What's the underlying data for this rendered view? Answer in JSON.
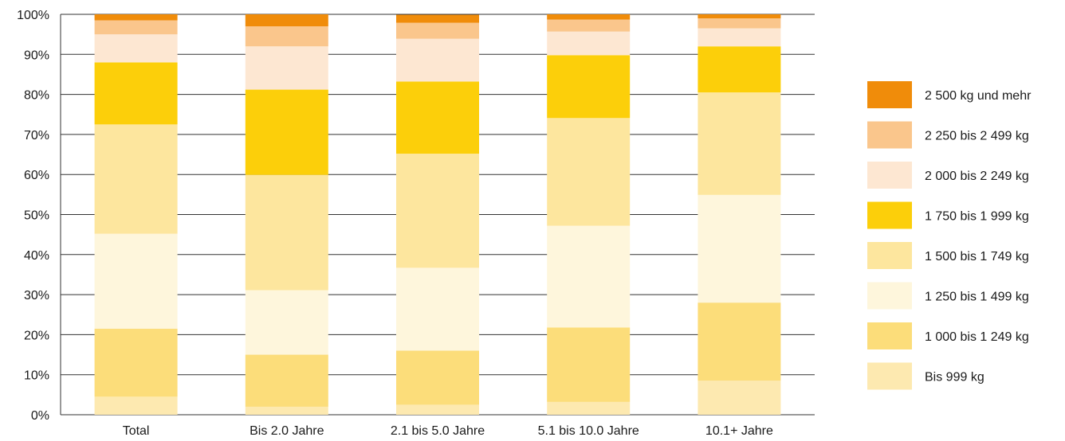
{
  "chart_data": {
    "type": "bar",
    "stacked": true,
    "categories": [
      "Total",
      "Bis 2.0 Jahre",
      "2.1 bis 5.0 Jahre",
      "5.1 bis 10.0 Jahre",
      "10.1+ Jahre"
    ],
    "yticks": [
      "0%",
      "10%",
      "20%",
      "30%",
      "40%",
      "50%",
      "60%",
      "70%",
      "80%",
      "90%",
      "100%"
    ],
    "ylim": [
      0,
      100
    ],
    "grid": true,
    "legend_position": "right",
    "series": [
      {
        "name": "Bis 999 kg",
        "color": "#FDE9B0",
        "values": [
          4.5,
          2.0,
          2.5,
          3.2,
          8.5
        ]
      },
      {
        "name": "1 000 bis 1 249 kg",
        "color": "#FCDD7A",
        "values": [
          17.0,
          13.0,
          13.5,
          18.6,
          19.5
        ]
      },
      {
        "name": "1 250 bis 1 499 kg",
        "color": "#FEF6DC",
        "values": [
          23.7,
          16.1,
          20.7,
          25.4,
          26.9
        ]
      },
      {
        "name": "1 500 bis 1 749 kg",
        "color": "#FDE69E",
        "values": [
          27.3,
          28.8,
          28.5,
          26.9,
          25.6
        ]
      },
      {
        "name": "1 750 bis 1 999 kg",
        "color": "#FCCF0A",
        "values": [
          15.5,
          21.3,
          18.0,
          15.7,
          11.5
        ]
      },
      {
        "name": "2 000 bis 2 249 kg",
        "color": "#FDE7D2",
        "values": [
          7.0,
          10.8,
          10.7,
          5.9,
          4.5
        ]
      },
      {
        "name": "2 250 bis 2 499 kg",
        "color": "#FAC68C",
        "values": [
          3.5,
          5.0,
          4.0,
          3.0,
          2.5
        ]
      },
      {
        "name": "2 500 kg und mehr",
        "color": "#F08C0A",
        "values": [
          1.5,
          3.0,
          2.0,
          1.3,
          1.0
        ]
      }
    ]
  }
}
